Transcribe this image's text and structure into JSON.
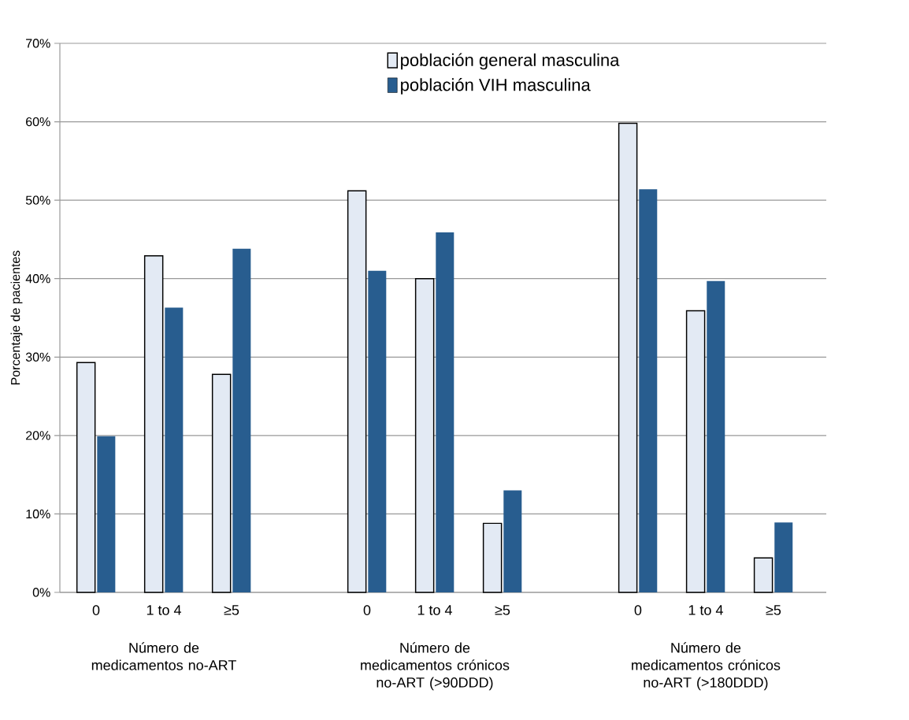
{
  "chart_data": {
    "type": "bar",
    "ylabel": "Porcentaje de pacientes",
    "categories": [
      "0",
      "1 to 4",
      "≥5",
      null,
      "0",
      "1 to 4",
      "≥5",
      null,
      "0",
      "1 to 4",
      "≥5"
    ],
    "series": [
      {
        "name": "población general masculina",
        "color": "#e3eaf4",
        "values": [
          29.3,
          42.9,
          27.8,
          null,
          51.2,
          40.0,
          8.8,
          null,
          59.8,
          35.9,
          4.4
        ]
      },
      {
        "name": "población VIH masculina",
        "color": "#285d8f",
        "values": [
          19.9,
          36.3,
          43.8,
          null,
          41.0,
          45.9,
          13.0,
          null,
          51.4,
          39.7,
          8.9
        ]
      }
    ],
    "ylim": [
      0,
      70
    ],
    "yticks": [
      {
        "value": 0,
        "label": "0%"
      },
      {
        "value": 10,
        "label": "10%"
      },
      {
        "value": 20,
        "label": "20%"
      },
      {
        "value": 30,
        "label": "30%"
      },
      {
        "value": 40,
        "label": "40%"
      },
      {
        "value": 50,
        "label": "50%"
      },
      {
        "value": 60,
        "label": "60%"
      },
      {
        "value": 70,
        "label": "70%"
      }
    ],
    "grid": "y",
    "legend": "top",
    "annotations": [
      "Número de medicamentos no-ART",
      "Número de medicamentos crónicos no-ART (>90DDD)",
      "Número de medicamentos crónicos no-ART (>180DDD)"
    ]
  }
}
